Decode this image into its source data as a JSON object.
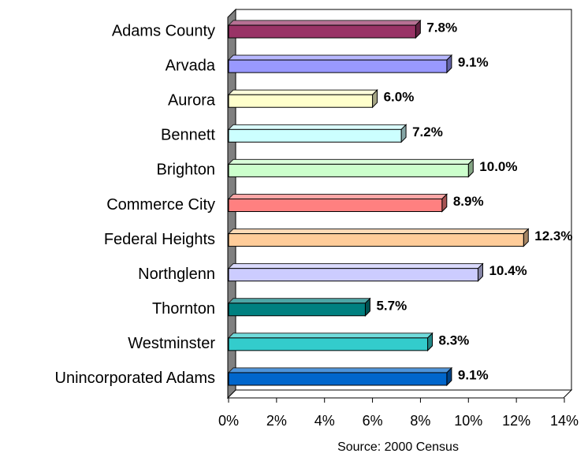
{
  "chart_data": {
    "type": "bar",
    "orientation": "horizontal",
    "source": "Source:  2000 Census",
    "categories": [
      "Adams County",
      "Arvada",
      "Aurora",
      "Bennett",
      "Brighton",
      "Commerce City",
      "Federal Heights",
      "Northglenn",
      "Thornton",
      "Westminster",
      "Unincorporated Adams"
    ],
    "values": [
      7.8,
      9.1,
      6.0,
      7.2,
      10.0,
      8.9,
      12.3,
      10.4,
      5.7,
      8.3,
      9.1
    ],
    "value_labels": [
      "7.8%",
      "9.1%",
      "6.0%",
      "7.2%",
      "10.0%",
      "8.9%",
      "12.3%",
      "10.4%",
      "5.7%",
      "8.3%",
      "9.1%"
    ],
    "colors": [
      "#993366",
      "#9999ff",
      "#ffffcc",
      "#ccffff",
      "#ccffcc",
      "#ff8080",
      "#ffcc99",
      "#ccccff",
      "#008080",
      "#33cccc",
      "#0066cc"
    ],
    "xlim": [
      0,
      14
    ],
    "xticks": [
      {
        "value": 0,
        "label": "0%"
      },
      {
        "value": 2,
        "label": "2%"
      },
      {
        "value": 4,
        "label": "4%"
      },
      {
        "value": 6,
        "label": "6%"
      },
      {
        "value": 8,
        "label": "8%"
      },
      {
        "value": 10,
        "label": "10%"
      },
      {
        "value": 12,
        "label": "12%"
      },
      {
        "value": 14,
        "label": "14%"
      }
    ]
  }
}
